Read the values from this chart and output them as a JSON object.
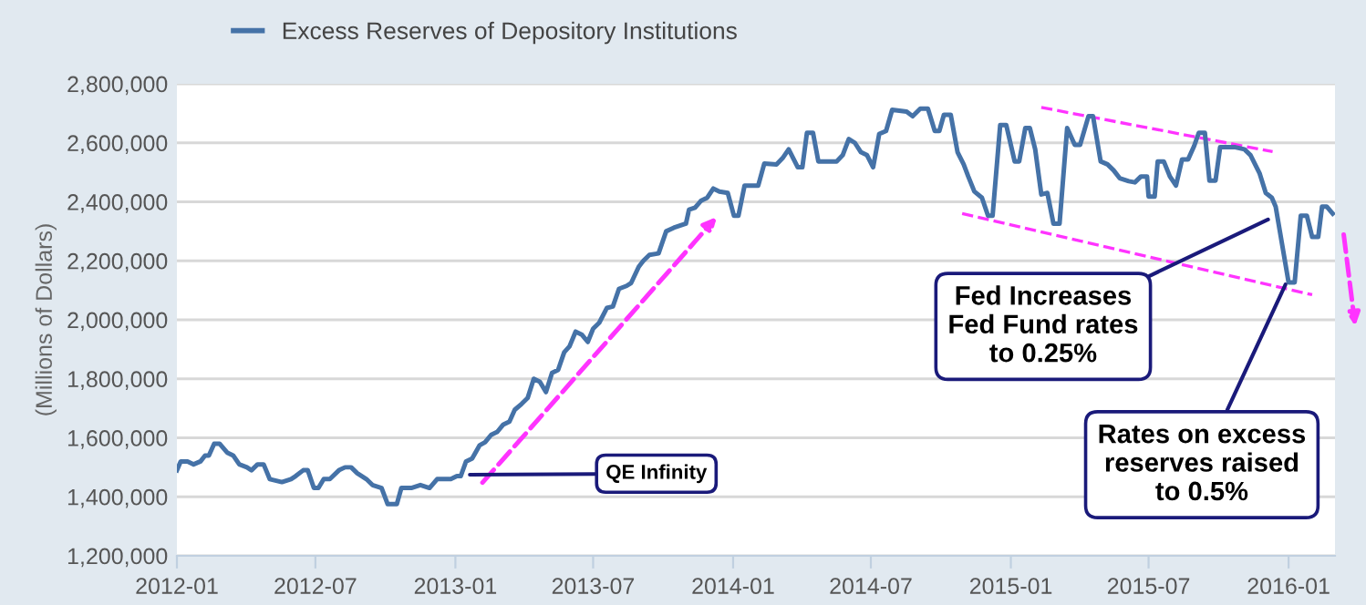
{
  "chart_data": {
    "type": "line",
    "ylabel": "(Millions of Dollars)",
    "legend": "top",
    "grid": "y",
    "marker": "none",
    "line_style": "solid",
    "xlim": [
      "2012-01-01",
      "2016-03-02"
    ],
    "ylim": [
      1200000,
      2800000
    ],
    "xticks": [
      "2012-01",
      "2012-07",
      "2013-01",
      "2013-07",
      "2014-01",
      "2014-07",
      "2015-01",
      "2015-07",
      "2016-01"
    ],
    "yticks": [
      {
        "value": 1200000,
        "label": "1,200,000"
      },
      {
        "value": 1400000,
        "label": "1,400,000"
      },
      {
        "value": 1600000,
        "label": "1,600,000"
      },
      {
        "value": 1800000,
        "label": "1,800,000"
      },
      {
        "value": 2000000,
        "label": "2,000,000"
      },
      {
        "value": 2200000,
        "label": "2,200,000"
      },
      {
        "value": 2400000,
        "label": "2,400,000"
      },
      {
        "value": 2600000,
        "label": "2,600,000"
      },
      {
        "value": 2800000,
        "label": "2,800,000"
      }
    ],
    "annotations": [
      {
        "text": "QE Infinity",
        "x": "2013-01-20",
        "y": 1475000
      },
      {
        "text": "Fed Increases\nFed Fund rates\nto 0.25%",
        "x": "2015-12-05",
        "y": 2340000
      },
      {
        "text": "Rates on excess\nreserves raised\nto 0.5%",
        "x": "2015-12-28",
        "y": 2120000
      }
    ],
    "x": [
      "2012-01-01",
      "2012-01-06",
      "2012-01-15",
      "2012-01-23",
      "2012-02-01",
      "2012-02-07",
      "2012-02-12",
      "2012-02-19",
      "2012-02-26",
      "2012-03-07",
      "2012-03-15",
      "2012-03-23",
      "2012-04-02",
      "2012-04-08",
      "2012-04-16",
      "2012-04-24",
      "2012-05-02",
      "2012-05-18",
      "2012-05-30",
      "2012-06-05",
      "2012-06-15",
      "2012-06-21",
      "2012-06-29",
      "2012-07-05",
      "2012-07-12",
      "2012-07-20",
      "2012-08-01",
      "2012-08-09",
      "2012-08-17",
      "2012-08-25",
      "2012-09-06",
      "2012-09-14",
      "2012-09-26",
      "2012-10-04",
      "2012-10-16",
      "2012-10-22",
      "2012-11-04",
      "2012-11-16",
      "2012-11-28",
      "2012-12-08",
      "2012-12-17",
      "2012-12-26",
      "2013-01-03",
      "2013-01-08",
      "2013-01-15",
      "2013-01-23",
      "2013-02-02",
      "2013-02-09",
      "2013-02-17",
      "2013-02-25",
      "2013-03-05",
      "2013-03-13",
      "2013-03-20",
      "2013-03-29",
      "2013-04-06",
      "2013-04-14",
      "2013-04-22",
      "2013-04-30",
      "2013-05-08",
      "2013-05-16",
      "2013-05-24",
      "2013-05-31",
      "2013-06-08",
      "2013-06-16",
      "2013-06-24",
      "2013-07-01",
      "2013-07-09",
      "2013-07-19",
      "2013-07-27",
      "2013-08-04",
      "2013-08-14",
      "2013-08-20",
      "2013-08-30",
      "2013-09-05",
      "2013-09-13",
      "2013-09-25",
      "2013-10-05",
      "2013-10-15",
      "2013-10-31",
      "2013-11-04",
      "2013-11-12",
      "2013-11-20",
      "2013-11-28",
      "2013-12-06",
      "2013-12-14",
      "2013-12-25",
      "2014-01-02",
      "2014-01-08",
      "2014-01-16",
      "2014-02-03",
      "2014-02-11",
      "2014-02-27",
      "2014-03-07",
      "2014-03-15",
      "2014-03-27",
      "2014-04-02",
      "2014-04-08",
      "2014-04-16",
      "2014-04-23",
      "2014-05-17",
      "2014-05-25",
      "2014-06-02",
      "2014-06-10",
      "2014-06-18",
      "2014-06-26",
      "2014-07-04",
      "2014-07-12",
      "2014-07-21",
      "2014-07-29",
      "2014-08-17",
      "2014-08-25",
      "2014-09-04",
      "2014-09-14",
      "2014-09-23",
      "2014-09-29",
      "2014-10-05",
      "2014-10-14",
      "2014-10-23",
      "2014-10-31",
      "2014-11-06",
      "2014-11-14",
      "2014-11-24",
      "2014-12-02",
      "2014-12-08",
      "2014-12-18",
      "2014-12-26",
      "2015-01-06",
      "2015-01-12",
      "2015-01-20",
      "2015-01-26",
      "2015-02-02",
      "2015-02-10",
      "2015-02-18",
      "2015-02-26",
      "2015-03-06",
      "2015-03-16",
      "2015-03-26",
      "2015-04-02",
      "2015-04-13",
      "2015-04-19",
      "2015-04-29",
      "2015-05-08",
      "2015-05-16",
      "2015-05-24",
      "2015-06-05",
      "2015-06-13",
      "2015-06-21",
      "2015-06-29",
      "2015-07-01",
      "2015-07-09",
      "2015-07-13",
      "2015-07-21",
      "2015-07-29",
      "2015-08-06",
      "2015-08-14",
      "2015-08-22",
      "2015-08-30",
      "2015-09-05",
      "2015-09-13",
      "2015-09-19",
      "2015-09-27",
      "2015-10-03",
      "2015-10-23",
      "2015-11-04",
      "2015-11-12",
      "2015-11-24",
      "2015-12-02",
      "2015-12-10",
      "2015-12-15",
      "2016-01-01",
      "2016-01-09",
      "2016-01-17",
      "2016-01-25",
      "2016-02-01",
      "2016-02-09",
      "2016-02-14",
      "2016-02-20",
      "2016-02-28"
    ],
    "series": [
      {
        "type": "line",
        "color": "#ff33ff",
        "line_style": "dashed",
        "x": [
          "2015-02-10",
          "2015-12-11"
        ],
        "values": [
          2720000,
          2570000
        ]
      },
      {
        "type": "line",
        "color": "#ff33ff",
        "line_style": "dashed",
        "x": [
          "2014-10-29",
          "2016-02-01"
        ],
        "values": [
          2360000,
          2085000
        ]
      },
      {
        "name": "Excess Reserves of Depository Institutions",
        "color": "#4572a7",
        "values": [
          1490000,
          1520000,
          1520000,
          1510000,
          1520000,
          1540000,
          1540000,
          1580000,
          1580000,
          1550000,
          1540000,
          1510000,
          1500000,
          1490000,
          1510000,
          1510000,
          1460000,
          1450000,
          1460000,
          1470000,
          1490000,
          1490000,
          1430000,
          1430000,
          1460000,
          1460000,
          1490000,
          1500000,
          1500000,
          1480000,
          1460000,
          1440000,
          1430000,
          1375000,
          1375000,
          1430000,
          1430000,
          1440000,
          1430000,
          1460000,
          1460000,
          1460000,
          1470000,
          1470000,
          1520000,
          1530000,
          1575000,
          1585000,
          1610000,
          1620000,
          1645000,
          1655000,
          1695000,
          1715000,
          1735000,
          1800000,
          1790000,
          1755000,
          1820000,
          1830000,
          1890000,
          1910000,
          1960000,
          1950000,
          1925000,
          1970000,
          1990000,
          2040000,
          2045000,
          2105000,
          2115000,
          2125000,
          2180000,
          2200000,
          2220000,
          2225000,
          2300000,
          2312000,
          2326000,
          2373000,
          2380000,
          2404000,
          2414000,
          2445000,
          2435000,
          2430000,
          2353000,
          2353000,
          2455000,
          2455000,
          2530000,
          2527000,
          2548000,
          2578000,
          2517000,
          2517000,
          2634000,
          2634000,
          2537000,
          2537000,
          2558000,
          2613000,
          2600000,
          2568000,
          2558000,
          2517000,
          2630000,
          2640000,
          2712000,
          2706000,
          2690000,
          2716000,
          2716000,
          2640000,
          2640000,
          2695000,
          2695000,
          2568000,
          2527000,
          2486000,
          2435000,
          2414000,
          2353000,
          2353000,
          2660000,
          2660000,
          2537000,
          2537000,
          2650000,
          2650000,
          2578000,
          2425000,
          2430000,
          2326000,
          2326000,
          2650000,
          2593000,
          2593000,
          2690000,
          2690000,
          2537000,
          2527000,
          2507000,
          2480000,
          2470000,
          2466000,
          2486000,
          2486000,
          2418000,
          2418000,
          2537000,
          2537000,
          2486000,
          2455000,
          2544000,
          2544000,
          2590000,
          2634000,
          2634000,
          2472000,
          2472000,
          2585000,
          2585000,
          2578000,
          2558000,
          2496000,
          2430000,
          2414000,
          2384000,
          2127000,
          2127000,
          2353000,
          2353000,
          2281000,
          2281000,
          2384000,
          2384000,
          2360000
        ]
      }
    ]
  }
}
